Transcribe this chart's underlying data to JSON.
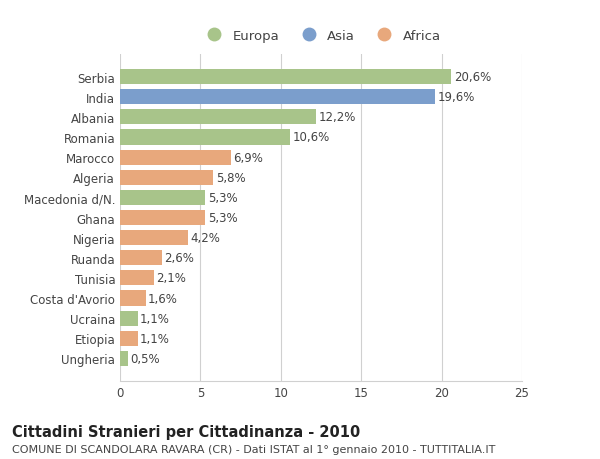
{
  "categories": [
    "Serbia",
    "India",
    "Albania",
    "Romania",
    "Marocco",
    "Algeria",
    "Macedonia d/N.",
    "Ghana",
    "Nigeria",
    "Ruanda",
    "Tunisia",
    "Costa d'Avorio",
    "Ucraina",
    "Etiopia",
    "Ungheria"
  ],
  "values": [
    20.6,
    19.6,
    12.2,
    10.6,
    6.9,
    5.8,
    5.3,
    5.3,
    4.2,
    2.6,
    2.1,
    1.6,
    1.1,
    1.1,
    0.5
  ],
  "labels": [
    "20,6%",
    "19,6%",
    "12,2%",
    "10,6%",
    "6,9%",
    "5,8%",
    "5,3%",
    "5,3%",
    "4,2%",
    "2,6%",
    "2,1%",
    "1,6%",
    "1,1%",
    "1,1%",
    "0,5%"
  ],
  "continents": [
    "Europa",
    "Asia",
    "Europa",
    "Europa",
    "Africa",
    "Africa",
    "Europa",
    "Africa",
    "Africa",
    "Africa",
    "Africa",
    "Africa",
    "Europa",
    "Africa",
    "Europa"
  ],
  "colors": {
    "Europa": "#a8c48a",
    "Asia": "#7b9ecc",
    "Africa": "#e8a87c"
  },
  "xlim": [
    0,
    25
  ],
  "xticks": [
    0,
    5,
    10,
    15,
    20,
    25
  ],
  "title": "Cittadini Stranieri per Cittadinanza - 2010",
  "subtitle": "COMUNE DI SCANDOLARA RAVARA (CR) - Dati ISTAT al 1° gennaio 2010 - TUTTITALIA.IT",
  "background_color": "#ffffff",
  "grid_color": "#d0d0d0",
  "bar_height": 0.75,
  "text_color": "#444444",
  "title_fontsize": 10.5,
  "subtitle_fontsize": 8,
  "tick_fontsize": 8.5,
  "label_fontsize": 8.5,
  "legend_fontsize": 9.5
}
